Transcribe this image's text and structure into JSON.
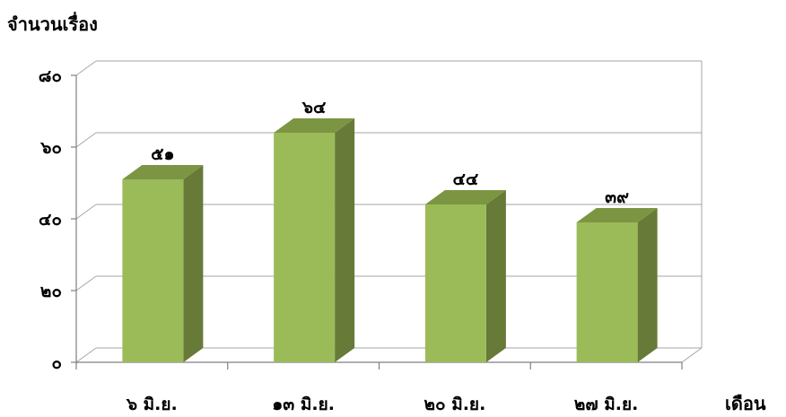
{
  "chart_data": {
    "type": "bar",
    "ylabel": "จำนวนเรื่อง",
    "xlabel": "เดือน",
    "categories": [
      "๖ มิ.ย.",
      "๑๓ มิ.ย.",
      "๒๐ มิ.ย.",
      "๒๗ มิ.ย."
    ],
    "values": [
      51,
      64,
      44,
      39
    ],
    "data_labels": [
      "๕๑",
      "๖๔",
      "๔๔",
      "๓๙"
    ],
    "ylim": [
      0,
      80
    ],
    "yticks": [
      0,
      20,
      40,
      60,
      80
    ],
    "ytick_labels": [
      "๐",
      "๒๐",
      "๔๐",
      "๖๐",
      "๘๐"
    ],
    "grid": true,
    "style": "3d-column",
    "colors": {
      "bar_front": "#9bbb59",
      "bar_side": "#677a38",
      "bar_top": "#7c9543",
      "grid": "#a6a6a6",
      "axis": "#7f7f7f"
    }
  }
}
